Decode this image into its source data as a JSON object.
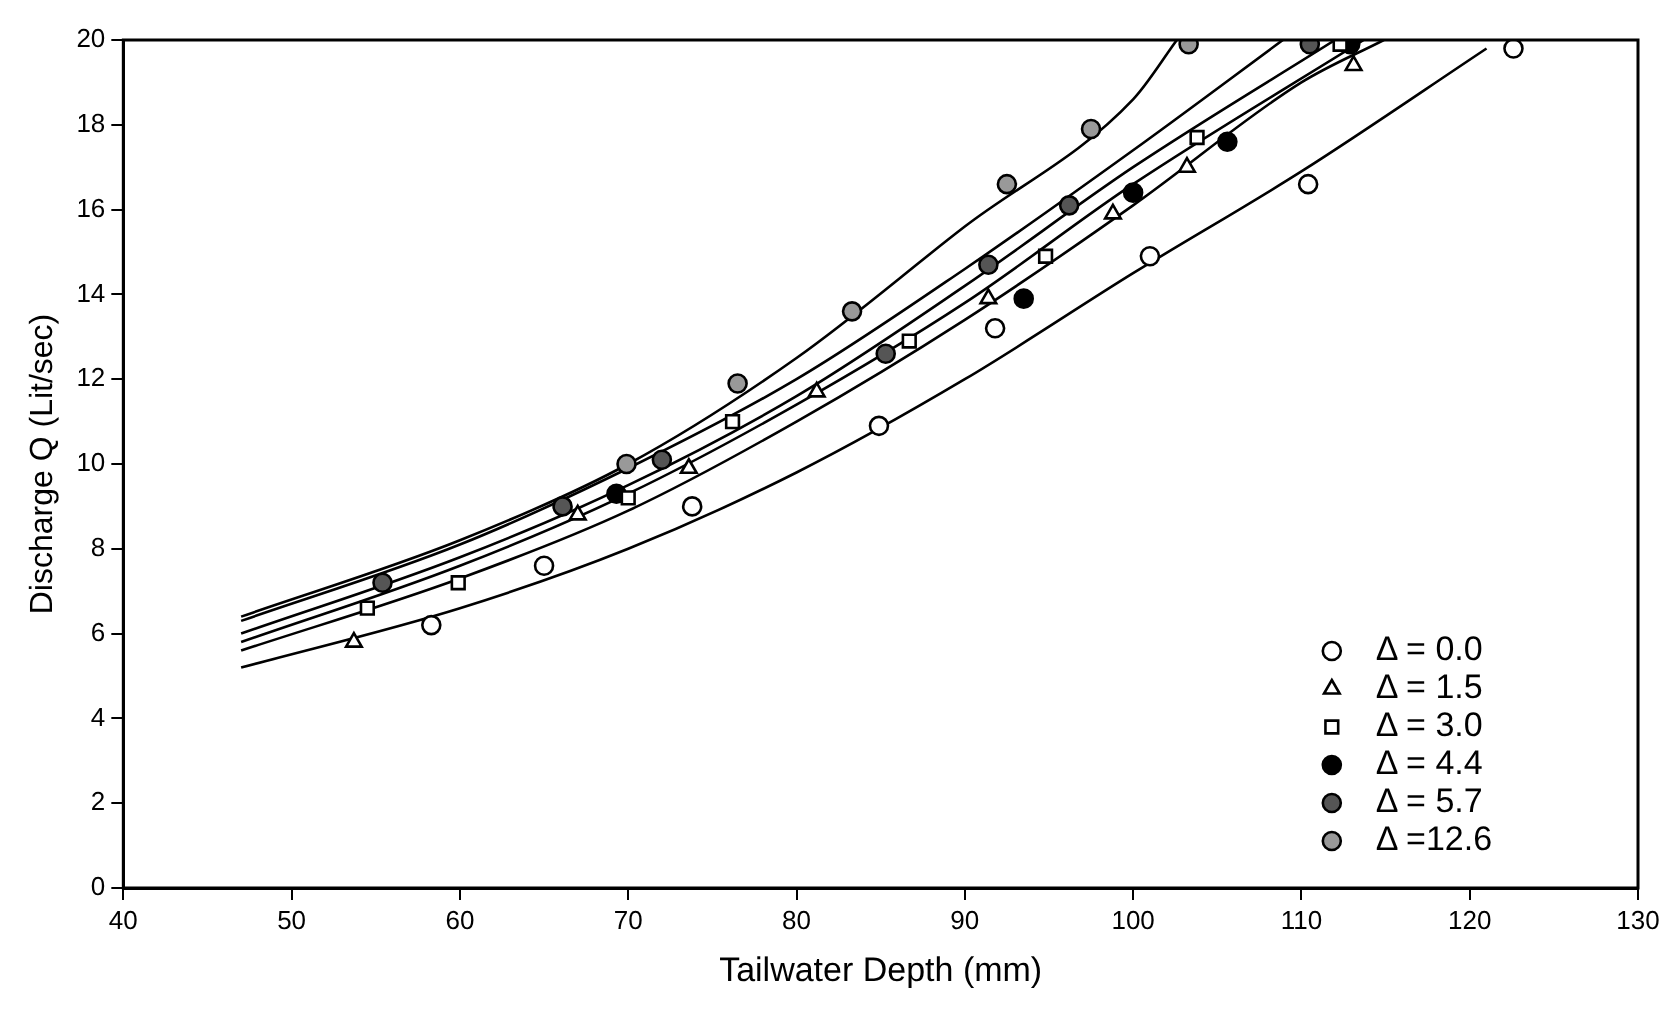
{
  "chart_data": {
    "type": "scatter",
    "xlabel": "Tailwater Depth (mm)",
    "ylabel": "Discharge Q (Lit/sec)",
    "xlim": [
      40,
      130
    ],
    "xticks": [
      40,
      50,
      60,
      70,
      80,
      90,
      100,
      110,
      120,
      130
    ],
    "ylim": [
      0,
      20
    ],
    "yticks": [
      0,
      2,
      4,
      6,
      8,
      10,
      12,
      14,
      16,
      18,
      20
    ],
    "grid": false,
    "legend": "bottom right",
    "series": [
      {
        "name": "Δ = 0.0",
        "marker": "circle",
        "color": "#ffffff",
        "x": [
          58.3,
          65,
          73.8,
          84.9,
          91.8,
          101,
          110.4,
          122.6
        ],
        "values": [
          6.2,
          7.6,
          9.0,
          10.9,
          13.2,
          14.9,
          16.6,
          19.8
        ]
      },
      {
        "name": "Δ = 1.5",
        "marker": "triangle",
        "color": "#ffffff",
        "x": [
          53.7,
          67,
          73.6,
          81.2,
          91.4,
          98.8,
          103.2,
          113.1
        ],
        "values": [
          5.8,
          8.8,
          9.9,
          11.7,
          13.9,
          15.9,
          17.0,
          19.4
        ]
      },
      {
        "name": "Δ = 3.0",
        "marker": "square",
        "color": "#ffffff",
        "x": [
          54.5,
          59.9,
          70,
          76.2,
          86.7,
          94.8,
          103.8,
          112.3
        ],
        "values": [
          6.6,
          7.2,
          9.2,
          11.0,
          12.9,
          14.9,
          17.7,
          19.9
        ]
      },
      {
        "name": "Δ = 4.4",
        "marker": "circle",
        "color": "#000000",
        "x": [
          69.3,
          93.5,
          100,
          105.6,
          112.9
        ],
        "values": [
          9.3,
          13.9,
          16.4,
          17.6,
          19.9
        ]
      },
      {
        "name": "Δ = 5.7",
        "marker": "circle",
        "color": "#555555",
        "x": [
          55.4,
          66.1,
          72,
          85.3,
          91.4,
          96.2,
          110.5
        ],
        "values": [
          7.2,
          9.0,
          10.1,
          12.6,
          14.7,
          16.1,
          19.9
        ]
      },
      {
        "name": "Δ =12.6",
        "marker": "circle",
        "color": "#999999",
        "x": [
          69.9,
          76.5,
          83.3,
          92.5,
          97.5,
          103.3
        ],
        "values": [
          10.0,
          11.9,
          13.6,
          16.6,
          17.9,
          19.9
        ]
      },
      {
        "type": "line",
        "marker": "none",
        "color": "#000000",
        "x": [
          47,
          60,
          70,
          80,
          90,
          100,
          110,
          121
        ],
        "values": [
          5.2,
          6.6,
          8.0,
          9.8,
          12.0,
          14.5,
          16.9,
          19.8
        ]
      },
      {
        "type": "line",
        "marker": "none",
        "color": "#000000",
        "x": [
          47,
          60,
          70,
          80,
          90,
          100,
          110,
          114.9
        ],
        "values": [
          5.6,
          7.3,
          8.9,
          11.0,
          13.4,
          16.1,
          19.0,
          20
        ]
      },
      {
        "type": "line",
        "marker": "none",
        "color": "#000000",
        "x": [
          47,
          60,
          70,
          80,
          90,
          100,
          113.7
        ],
        "values": [
          5.8,
          7.6,
          9.3,
          11.4,
          13.8,
          16.6,
          20
        ]
      },
      {
        "type": "line",
        "marker": "none",
        "color": "#000000",
        "x": [
          47,
          60,
          70,
          80,
          90,
          100,
          112
        ],
        "values": [
          6.0,
          7.8,
          9.5,
          11.6,
          14.2,
          17.0,
          20
        ]
      },
      {
        "type": "line",
        "marker": "none",
        "color": "#000000",
        "x": [
          47,
          60,
          70,
          80,
          90,
          100,
          108.9
        ],
        "values": [
          6.3,
          8.1,
          9.9,
          12.0,
          14.6,
          17.4,
          20
        ]
      },
      {
        "type": "line",
        "marker": "none",
        "color": "#000000",
        "x": [
          47,
          60,
          70,
          80,
          90,
          100,
          102.6
        ],
        "values": [
          6.4,
          8.2,
          10.0,
          12.5,
          15.6,
          18.6,
          20
        ]
      }
    ]
  }
}
